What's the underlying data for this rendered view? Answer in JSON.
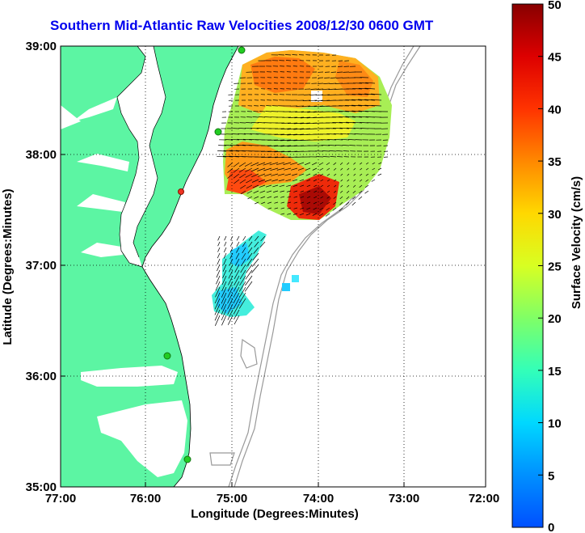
{
  "title": "Southern Mid-Atlantic Raw Velocities 2008/12/30 0600 GMT",
  "x_axis": {
    "label": "Longitude (Degrees:Minutes)",
    "ticks": [
      "77:00",
      "76:00",
      "75:00",
      "74:00",
      "73:00",
      "72:00"
    ]
  },
  "y_axis": {
    "label": "Latitude (Degrees:Minutes)",
    "ticks": [
      "39:00",
      "38:00",
      "37:00",
      "36:00",
      "35:00"
    ]
  },
  "colorbar": {
    "label": "Surface Velocity (cm/s)",
    "ticks": [
      "50",
      "45",
      "40",
      "35",
      "30",
      "25",
      "20",
      "15",
      "10",
      "5",
      "0"
    ],
    "min": 0,
    "max": 50
  },
  "colors": {
    "land": "#5cf5a3",
    "ocean": "#ffffff",
    "title": "#0000ee",
    "bathymetry": "#999999",
    "station": "#22cc22",
    "station_alt": "#ee3322"
  }
}
